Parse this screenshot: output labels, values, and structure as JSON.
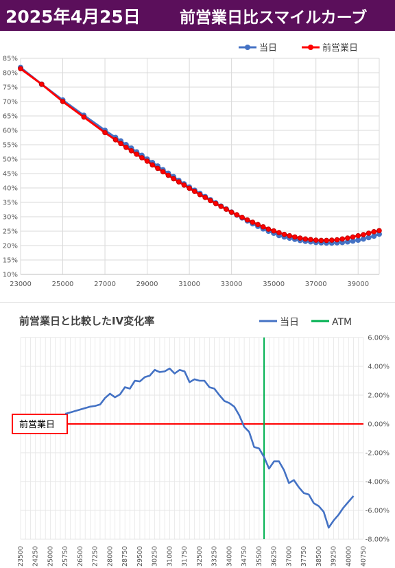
{
  "header": {
    "date": "2025年4月25日",
    "title": "前営業日比スマイルカーブ"
  },
  "colors": {
    "header_bg": "#5b0f5b",
    "today": "#4472c4",
    "prev": "#ff0000",
    "atm": "#00b050",
    "zero_line": "#ff0000"
  },
  "chart_data": [
    {
      "type": "line",
      "title": "",
      "legend_position": "top-right",
      "grid": true,
      "xlim": [
        23000,
        40000
      ],
      "ylim": [
        10,
        85
      ],
      "x_ticks": [
        "23000",
        "25000",
        "27000",
        "29000",
        "31000",
        "33000",
        "35000",
        "37000",
        "39000"
      ],
      "y_ticks": [
        "10%",
        "15%",
        "20%",
        "25%",
        "30%",
        "35%",
        "40%",
        "45%",
        "50%",
        "55%",
        "60%",
        "65%",
        "70%",
        "75%",
        "80%",
        "85%"
      ],
      "series": [
        {
          "name": "当日",
          "color": "#4472c4",
          "x": [
            23000,
            24000,
            25000,
            26000,
            27000,
            27500,
            27750,
            28000,
            28250,
            28500,
            28750,
            29000,
            29250,
            29500,
            29750,
            30000,
            30250,
            30500,
            30750,
            31000,
            31250,
            31500,
            31750,
            32000,
            32250,
            32500,
            32750,
            33000,
            33250,
            33500,
            33750,
            34000,
            34250,
            34500,
            34750,
            35000,
            35250,
            35500,
            35750,
            36000,
            36250,
            36500,
            36750,
            37000,
            37250,
            37500,
            37750,
            38000,
            38250,
            38500,
            38750,
            39000,
            39250,
            39500,
            39750,
            40000
          ],
          "y": [
            81.8,
            76.0,
            70.5,
            65.2,
            60.0,
            57.5,
            56.3,
            55.0,
            53.8,
            52.5,
            51.3,
            50.0,
            48.8,
            47.6,
            46.3,
            45.1,
            43.9,
            42.6,
            41.4,
            40.3,
            39.2,
            38.1,
            37.0,
            35.9,
            34.8,
            33.7,
            32.7,
            31.6,
            30.6,
            29.6,
            28.6,
            27.6,
            26.7,
            25.8,
            25.0,
            24.3,
            23.5,
            23.0,
            22.6,
            22.2,
            21.8,
            21.5,
            21.3,
            21.1,
            21.0,
            20.9,
            20.9,
            21.0,
            21.1,
            21.3,
            21.6,
            21.9,
            22.3,
            22.8,
            23.3,
            24.0
          ]
        },
        {
          "name": "前営業日",
          "color": "#ff0000",
          "x": [
            23000,
            24000,
            25000,
            26000,
            27000,
            27500,
            27750,
            28000,
            28250,
            28500,
            28750,
            29000,
            29250,
            29500,
            29750,
            30000,
            30250,
            30500,
            30750,
            31000,
            31250,
            31500,
            31750,
            32000,
            32250,
            32500,
            32750,
            33000,
            33250,
            33500,
            33750,
            34000,
            34250,
            34500,
            34750,
            35000,
            35250,
            35500,
            35750,
            36000,
            36250,
            36500,
            36750,
            37000,
            37250,
            37500,
            37750,
            38000,
            38250,
            38500,
            38750,
            39000,
            39250,
            39500,
            39750,
            40000
          ],
          "y": [
            81.4,
            76.0,
            70.0,
            64.6,
            59.2,
            56.7,
            55.4,
            54.1,
            52.9,
            51.7,
            50.5,
            49.3,
            48.0,
            46.8,
            45.6,
            44.4,
            43.2,
            42.1,
            41.0,
            39.9,
            38.8,
            37.7,
            36.7,
            35.6,
            34.6,
            33.6,
            32.6,
            31.6,
            30.7,
            29.8,
            28.9,
            28.1,
            27.3,
            26.5,
            25.7,
            25.1,
            24.5,
            23.9,
            23.4,
            23.0,
            22.6,
            22.3,
            22.1,
            21.9,
            21.8,
            21.8,
            21.9,
            22.0,
            22.3,
            22.6,
            23.0,
            23.4,
            23.8,
            24.3,
            24.8,
            25.2
          ]
        }
      ]
    },
    {
      "type": "line",
      "title": "前営業日と比較したIV変化率",
      "legend_position": "top-right",
      "grid": true,
      "xlim": [
        23500,
        40750
      ],
      "ylim": [
        -8,
        6
      ],
      "x_ticks": [
        "23500",
        "24250",
        "25000",
        "25750",
        "26500",
        "27250",
        "28000",
        "28750",
        "29500",
        "30250",
        "31000",
        "31750",
        "32500",
        "33250",
        "34000",
        "34750",
        "35500",
        "36250",
        "37000",
        "37750",
        "38500",
        "39250",
        "40000",
        "40750"
      ],
      "y_ticks": [
        "6.00%",
        "4.00%",
        "2.00%",
        "0.00%",
        "-2.00%",
        "-4.00%",
        "-6.00%",
        "-8.00%"
      ],
      "zero_label": "前営業日",
      "atm": {
        "name": "ATM",
        "x": 35750
      },
      "series": [
        {
          "name": "当日",
          "color": "#4472c4",
          "x": [
            25750,
            26000,
            26250,
            26500,
            26750,
            27000,
            27250,
            27500,
            27750,
            28000,
            28250,
            28500,
            28750,
            29000,
            29250,
            29500,
            29750,
            30000,
            30250,
            30500,
            30750,
            31000,
            31250,
            31500,
            31750,
            32000,
            32250,
            32500,
            32750,
            33000,
            33250,
            33500,
            33750,
            34000,
            34250,
            34500,
            34750,
            35000,
            35250,
            35500,
            35750,
            36000,
            36250,
            36500,
            36750,
            37000,
            37250,
            37500,
            37750,
            38000,
            38250,
            38500,
            38750,
            39000,
            39250,
            39500,
            39750,
            40000,
            40250
          ],
          "y": [
            0.7,
            0.8,
            0.9,
            1.0,
            1.1,
            1.2,
            1.25,
            1.35,
            1.8,
            2.1,
            1.85,
            2.05,
            2.55,
            2.45,
            3.0,
            2.95,
            3.25,
            3.35,
            3.75,
            3.6,
            3.65,
            3.85,
            3.5,
            3.75,
            3.65,
            2.9,
            3.1,
            3.0,
            3.0,
            2.55,
            2.45,
            2.0,
            1.6,
            1.45,
            1.2,
            0.6,
            -0.2,
            -0.55,
            -1.6,
            -1.7,
            -2.3,
            -3.1,
            -2.6,
            -2.6,
            -3.2,
            -4.1,
            -3.9,
            -4.4,
            -4.8,
            -4.9,
            -5.5,
            -5.7,
            -6.1,
            -7.2,
            -6.7,
            -6.3,
            -5.8,
            -5.4,
            -5.0
          ]
        }
      ]
    }
  ]
}
